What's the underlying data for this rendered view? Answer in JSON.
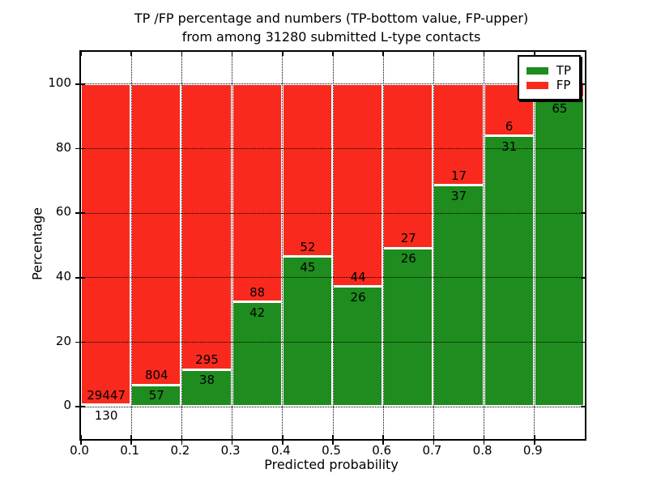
{
  "title": {
    "line1": "TP /FP percentage and numbers (TP-bottom value, FP-upper)",
    "line2": "from among 31280 submitted L-type contacts"
  },
  "axes": {
    "xlabel": "Predicted probability",
    "ylabel": "Percentage",
    "x_tick_labels": [
      "0.0",
      "0.1",
      "0.2",
      "0.3",
      "0.4",
      "0.5",
      "0.6",
      "0.7",
      "0.8",
      "0.9"
    ],
    "x_tick_values": [
      0.0,
      0.1,
      0.2,
      0.3,
      0.4,
      0.5,
      0.6,
      0.7,
      0.8,
      0.9
    ],
    "y_tick_labels": [
      "0",
      "20",
      "40",
      "60",
      "80",
      "100"
    ],
    "y_tick_values": [
      0,
      20,
      40,
      60,
      80,
      100
    ],
    "xlim": [
      0.0,
      1.0
    ],
    "ylim": [
      -10,
      110
    ],
    "grid": {
      "linestyle": "dotted",
      "color": "#000000"
    }
  },
  "legend": {
    "position": "upper right",
    "items": [
      {
        "label": "TP",
        "color": "#1e8c1e"
      },
      {
        "label": "FP",
        "color": "#f92a1d"
      }
    ]
  },
  "colors": {
    "tp_green": "#1e8c1e",
    "fp_red": "#f92a1d",
    "bar_edge": "#ffffff",
    "frame": "#000000",
    "background": "#ffffff",
    "text": "#000000"
  },
  "chart_data": {
    "type": "bar",
    "stacked": true,
    "normalized_to_percent": 100,
    "title": "TP /FP percentage and numbers (TP-bottom value, FP-upper) from among 31280 submitted L-type contacts",
    "xlabel": "Predicted probability",
    "ylabel": "Percentage",
    "xlim": [
      0.0,
      1.0
    ],
    "ylim": [
      -10,
      110
    ],
    "total_submitted_contacts": 31280,
    "bin_width": 0.1,
    "bin_starts": [
      0.0,
      0.1,
      0.2,
      0.3,
      0.4,
      0.5,
      0.6,
      0.7,
      0.8,
      0.9
    ],
    "categories": [
      "0.0-0.1",
      "0.1-0.2",
      "0.2-0.3",
      "0.3-0.4",
      "0.4-0.5",
      "0.5-0.6",
      "0.6-0.7",
      "0.7-0.8",
      "0.8-0.9",
      "0.9-1.0"
    ],
    "series": [
      {
        "name": "TP",
        "color": "#1e8c1e",
        "counts": [
          130,
          57,
          38,
          42,
          45,
          26,
          26,
          37,
          31,
          65
        ],
        "percent": [
          0.44,
          6.62,
          11.41,
          32.31,
          46.39,
          37.14,
          49.06,
          68.52,
          83.78,
          95.59
        ]
      },
      {
        "name": "FP",
        "color": "#f92a1d",
        "counts": [
          29447,
          804,
          295,
          88,
          52,
          44,
          27,
          17,
          6,
          null
        ],
        "percent": [
          99.56,
          93.38,
          88.59,
          67.69,
          53.61,
          62.86,
          50.94,
          31.48,
          16.22,
          4.41
        ]
      }
    ],
    "visible_bar_labels": {
      "fp": [
        "29447",
        "804",
        "295",
        "88",
        "52",
        "44",
        "27",
        "17",
        "6",
        null
      ],
      "tp": [
        "130",
        "57",
        "38",
        "42",
        "45",
        "26",
        "26",
        "37",
        "31",
        "65"
      ]
    },
    "note_fp_label_last_bin_hidden_behind_legend": true,
    "legend_entries": [
      "TP",
      "FP"
    ]
  }
}
